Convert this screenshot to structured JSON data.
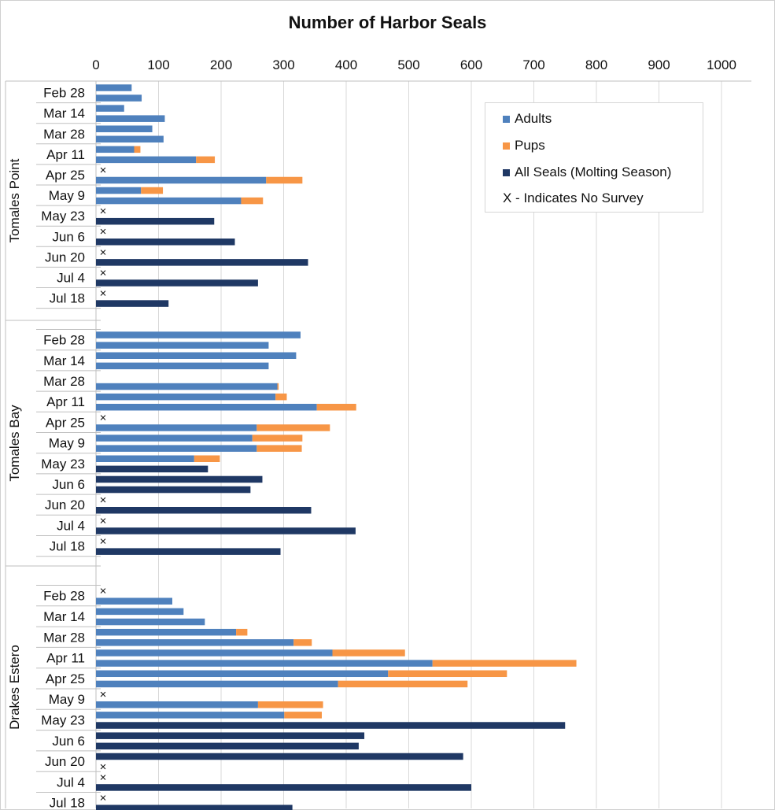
{
  "chart_data": {
    "type": "bar",
    "orientation": "horizontal",
    "stacked": true,
    "title": "Number of Harbor Seals",
    "xlim": [
      0,
      1000
    ],
    "x_ticks": [
      "0",
      "100",
      "200",
      "300",
      "400",
      "500",
      "600",
      "700",
      "800",
      "900",
      "1000"
    ],
    "grid": true,
    "legend_position": "top-right",
    "legend": {
      "adults": "Adults",
      "pups": "Pups",
      "all": "All Seals (Molting Season)",
      "note": "X - Indicates No Survey"
    },
    "colors": {
      "adults": "#4f81bd",
      "pups": "#f79646",
      "all": "#1f3864",
      "grid": "#d9d9d9",
      "axis": "#bfbfbf"
    },
    "groups": [
      {
        "name": "Tomales Point",
        "tick_labels": [
          "Feb 28",
          "Mar 14",
          "Mar 28",
          "Apr 11",
          "Apr 25",
          "May 9",
          "May 23",
          "Jun 6",
          "Jun 20",
          "Jul 4",
          "Jul 18"
        ],
        "rows": [
          {
            "adults": 57,
            "pups": 0,
            "all": 0,
            "no_survey": false
          },
          {
            "adults": 73,
            "pups": 0,
            "all": 0,
            "no_survey": false
          },
          {
            "adults": 45,
            "pups": 0,
            "all": 0,
            "no_survey": false
          },
          {
            "adults": 110,
            "pups": 0,
            "all": 0,
            "no_survey": false
          },
          {
            "adults": 90,
            "pups": 0,
            "all": 0,
            "no_survey": false
          },
          {
            "adults": 108,
            "pups": 0,
            "all": 0,
            "no_survey": false
          },
          {
            "adults": 61,
            "pups": 10,
            "all": 0,
            "no_survey": false
          },
          {
            "adults": 160,
            "pups": 30,
            "all": 0,
            "no_survey": false
          },
          {
            "adults": 0,
            "pups": 0,
            "all": 0,
            "no_survey": true
          },
          {
            "adults": 272,
            "pups": 58,
            "all": 0,
            "no_survey": false
          },
          {
            "adults": 72,
            "pups": 35,
            "all": 0,
            "no_survey": false
          },
          {
            "adults": 232,
            "pups": 35,
            "all": 0,
            "no_survey": false
          },
          {
            "adults": 0,
            "pups": 0,
            "all": 0,
            "no_survey": true
          },
          {
            "adults": 0,
            "pups": 0,
            "all": 189,
            "no_survey": false
          },
          {
            "adults": 0,
            "pups": 0,
            "all": 0,
            "no_survey": true
          },
          {
            "adults": 0,
            "pups": 0,
            "all": 222,
            "no_survey": false
          },
          {
            "adults": 0,
            "pups": 0,
            "all": 0,
            "no_survey": true
          },
          {
            "adults": 0,
            "pups": 0,
            "all": 339,
            "no_survey": false
          },
          {
            "adults": 0,
            "pups": 0,
            "all": 0,
            "no_survey": true
          },
          {
            "adults": 0,
            "pups": 0,
            "all": 259,
            "no_survey": false
          },
          {
            "adults": 0,
            "pups": 0,
            "all": 0,
            "no_survey": true
          },
          {
            "adults": 0,
            "pups": 0,
            "all": 116,
            "no_survey": false
          }
        ]
      },
      {
        "name": "Tomales Bay",
        "tick_labels": [
          "Feb 28",
          "Mar 14",
          "Mar 28",
          "Apr 11",
          "Apr 25",
          "May 9",
          "May 23",
          "Jun 6",
          "Jun 20",
          "Jul 4",
          "Jul 18"
        ],
        "rows": [
          {
            "adults": 327,
            "pups": 0,
            "all": 0,
            "no_survey": false
          },
          {
            "adults": 276,
            "pups": 0,
            "all": 0,
            "no_survey": false
          },
          {
            "adults": 320,
            "pups": 0,
            "all": 0,
            "no_survey": false
          },
          {
            "adults": 276,
            "pups": 0,
            "all": 0,
            "no_survey": false
          },
          {
            "adults": 0,
            "pups": 0,
            "all": 0,
            "no_survey": false
          },
          {
            "adults": 290,
            "pups": 2,
            "all": 0,
            "no_survey": false
          },
          {
            "adults": 287,
            "pups": 18,
            "all": 0,
            "no_survey": false
          },
          {
            "adults": 353,
            "pups": 63,
            "all": 0,
            "no_survey": false
          },
          {
            "adults": 0,
            "pups": 0,
            "all": 0,
            "no_survey": true
          },
          {
            "adults": 257,
            "pups": 117,
            "all": 0,
            "no_survey": false
          },
          {
            "adults": 250,
            "pups": 80,
            "all": 0,
            "no_survey": false
          },
          {
            "adults": 257,
            "pups": 72,
            "all": 0,
            "no_survey": false
          },
          {
            "adults": 157,
            "pups": 41,
            "all": 0,
            "no_survey": false
          },
          {
            "adults": 0,
            "pups": 0,
            "all": 179,
            "no_survey": false
          },
          {
            "adults": 0,
            "pups": 0,
            "all": 266,
            "no_survey": false
          },
          {
            "adults": 0,
            "pups": 0,
            "all": 247,
            "no_survey": false
          },
          {
            "adults": 0,
            "pups": 0,
            "all": 0,
            "no_survey": true
          },
          {
            "adults": 0,
            "pups": 0,
            "all": 344,
            "no_survey": false
          },
          {
            "adults": 0,
            "pups": 0,
            "all": 0,
            "no_survey": true
          },
          {
            "adults": 0,
            "pups": 0,
            "all": 415,
            "no_survey": false
          },
          {
            "adults": 0,
            "pups": 0,
            "all": 0,
            "no_survey": true
          },
          {
            "adults": 0,
            "pups": 0,
            "all": 295,
            "no_survey": false
          }
        ]
      },
      {
        "name": "Drakes Estero",
        "tick_labels": [
          "Feb 28",
          "Mar 14",
          "Mar 28",
          "Apr 11",
          "Apr 25",
          "May 9",
          "May 23",
          "Jun 6",
          "Jun 20",
          "Jul 4",
          "Jul 18"
        ],
        "rows": [
          {
            "adults": 0,
            "pups": 0,
            "all": 0,
            "no_survey": true
          },
          {
            "adults": 122,
            "pups": 0,
            "all": 0,
            "no_survey": false
          },
          {
            "adults": 140,
            "pups": 0,
            "all": 0,
            "no_survey": false
          },
          {
            "adults": 174,
            "pups": 0,
            "all": 0,
            "no_survey": false
          },
          {
            "adults": 224,
            "pups": 18,
            "all": 0,
            "no_survey": false
          },
          {
            "adults": 316,
            "pups": 29,
            "all": 0,
            "no_survey": false
          },
          {
            "adults": 378,
            "pups": 116,
            "all": 0,
            "no_survey": false
          },
          {
            "adults": 538,
            "pups": 230,
            "all": 0,
            "no_survey": false
          },
          {
            "adults": 467,
            "pups": 190,
            "all": 0,
            "no_survey": false
          },
          {
            "adults": 387,
            "pups": 207,
            "all": 0,
            "no_survey": false
          },
          {
            "adults": 0,
            "pups": 0,
            "all": 0,
            "no_survey": true
          },
          {
            "adults": 259,
            "pups": 104,
            "all": 0,
            "no_survey": false
          },
          {
            "adults": 301,
            "pups": 60,
            "all": 0,
            "no_survey": false
          },
          {
            "adults": 0,
            "pups": 0,
            "all": 750,
            "no_survey": false
          },
          {
            "adults": 0,
            "pups": 0,
            "all": 429,
            "no_survey": false
          },
          {
            "adults": 0,
            "pups": 0,
            "all": 420,
            "no_survey": false
          },
          {
            "adults": 0,
            "pups": 0,
            "all": 587,
            "no_survey": false
          },
          {
            "adults": 0,
            "pups": 0,
            "all": 0,
            "no_survey": true
          },
          {
            "adults": 0,
            "pups": 0,
            "all": 0,
            "no_survey": true
          },
          {
            "adults": 0,
            "pups": 0,
            "all": 600,
            "no_survey": false
          },
          {
            "adults": 0,
            "pups": 0,
            "all": 0,
            "no_survey": true
          },
          {
            "adults": 0,
            "pups": 0,
            "all": 314,
            "no_survey": false
          }
        ]
      }
    ]
  }
}
